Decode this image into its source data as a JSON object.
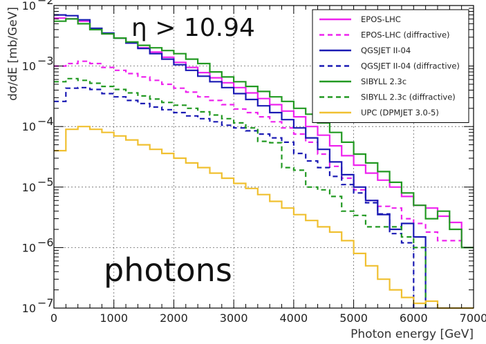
{
  "chart_data": {
    "type": "line",
    "xlabel": "Photon energy [GeV]",
    "ylabel": "dσ/dE [mb/GeV]",
    "xlim": [
      0,
      7000
    ],
    "ylim": [
      1e-07,
      0.01
    ],
    "yscale": "log",
    "grid": true,
    "legend_position": "top-right",
    "xticks": [
      0,
      1000,
      2000,
      3000,
      4000,
      5000,
      6000,
      7000
    ],
    "xtick_labels": [
      "0",
      "1000",
      "2000",
      "3000",
      "4000",
      "5000",
      "6000",
      "7000"
    ],
    "yticks": [
      1e-07,
      1e-06,
      1e-05,
      0.0001,
      0.001,
      0.01
    ],
    "ytick_bases": [
      "10",
      "10",
      "10",
      "10",
      "10",
      "10"
    ],
    "ytick_exps": [
      "−7",
      "−6",
      "−5",
      "−4",
      "−3",
      "−2"
    ],
    "annotations": [
      "η > 10.94",
      "photons"
    ],
    "bin_width": 200,
    "series": [
      {
        "name": "EPOS-LHC",
        "color": "#ee22ee",
        "dash": "solid",
        "values": [
          0.0062,
          0.006,
          0.0055,
          0.004,
          0.0034,
          0.0029,
          0.0024,
          0.002,
          0.0017,
          0.0014,
          0.00115,
          0.00095,
          0.00078,
          0.00064,
          0.00053,
          0.00044,
          0.00036,
          0.00029,
          0.00023,
          0.00018,
          0.000145,
          0.0001,
          7.2e-05,
          4.8e-05,
          3.3e-05,
          2.3e-05,
          1.7e-05,
          1.3e-05,
          1e-05,
          7e-06,
          5e-06,
          4.5e-06,
          3.3e-06,
          2.6e-06,
          1e-06
        ]
      },
      {
        "name": "EPOS-LHC (diffractive)",
        "color": "#ee22ee",
        "dash": "dashed",
        "values": [
          0.001,
          0.0011,
          0.0012,
          0.0011,
          0.00095,
          0.00085,
          0.00075,
          0.00066,
          0.00058,
          0.0005,
          0.00043,
          0.00037,
          0.00031,
          0.00027,
          0.00023,
          0.000195,
          0.00017,
          0.000145,
          0.00012,
          9.5e-05,
          7.5e-05,
          5.5e-05,
          3.5e-05,
          2.2e-05,
          1.4e-05,
          9e-06,
          6e-06,
          4.8e-06,
          4.5e-06,
          3e-06,
          2.5e-06,
          1.8e-06,
          1.3e-06,
          1.3e-06,
          1e-06
        ]
      },
      {
        "name": "QGSJET II-04",
        "color": "#1a1ab4",
        "dash": "solid",
        "values": [
          0.007,
          0.0068,
          0.0058,
          0.0042,
          0.0035,
          0.0029,
          0.0024,
          0.00195,
          0.0016,
          0.0013,
          0.00105,
          0.00085,
          0.00068,
          0.00055,
          0.00044,
          0.00035,
          0.00028,
          0.00022,
          0.00017,
          0.00013,
          9.5e-05,
          6.5e-05,
          4.2e-05,
          2.6e-05,
          1.6e-05,
          1e-05,
          6e-06,
          3.5e-06,
          2e-06,
          2.5e-06,
          1.5e-06,
          null,
          null,
          null,
          null
        ]
      },
      {
        "name": "QGSJET II-04 (diffractive)",
        "color": "#1a1ab4",
        "dash": "dashed",
        "values": [
          0.00026,
          0.00043,
          0.00044,
          0.00041,
          0.00035,
          0.00031,
          0.00027,
          0.00024,
          0.00021,
          0.00019,
          0.00017,
          0.00015,
          0.000135,
          0.00012,
          0.000105,
          9.5e-05,
          8.5e-05,
          7.5e-05,
          6.5e-05,
          5.5e-05,
          3.6e-05,
          2.7e-05,
          2.1e-05,
          1.5e-05,
          1.1e-05,
          8e-06,
          5.5e-06,
          3.6e-06,
          1.7e-06,
          1.2e-06,
          null,
          null,
          null,
          null,
          null
        ]
      },
      {
        "name": "SIBYLL 2.3c",
        "color": "#229922",
        "dash": "solid",
        "values": [
          0.0055,
          0.006,
          0.005,
          0.004,
          0.0034,
          0.0029,
          0.0025,
          0.0022,
          0.002,
          0.0018,
          0.0016,
          0.0013,
          0.0011,
          0.0008,
          0.00066,
          0.00055,
          0.00046,
          0.00038,
          0.00031,
          0.00026,
          0.0002,
          0.00016,
          0.000115,
          8e-05,
          5.5e-05,
          3.5e-05,
          2.5e-05,
          1.8e-05,
          1.2e-05,
          8e-06,
          5e-06,
          3e-06,
          4e-06,
          2e-06,
          1e-06
        ]
      },
      {
        "name": "SIBYLL 2.3c (diffractive)",
        "color": "#229922",
        "dash": "dashed",
        "values": [
          0.00055,
          0.00062,
          0.00058,
          0.00052,
          0.00046,
          0.00041,
          0.00036,
          0.00032,
          0.000285,
          0.00025,
          0.000225,
          0.0002,
          0.000175,
          0.000155,
          0.000135,
          0.000115,
          9.5e-05,
          5.7e-05,
          5.4e-05,
          2.1e-05,
          1.9e-05,
          1e-05,
          9e-06,
          7e-06,
          4e-06,
          3.4e-06,
          2.2e-06,
          2.2e-06,
          2.2e-06,
          1.5e-06,
          1e-06,
          null,
          null,
          null,
          null
        ]
      },
      {
        "name": "UPC (DPMJET 3.0-5)",
        "color": "#f0c030",
        "dash": "solid",
        "values": [
          4e-05,
          9e-05,
          0.0001,
          9e-05,
          8e-05,
          7e-05,
          6e-05,
          5e-05,
          4.2e-05,
          3.6e-05,
          3e-05,
          2.5e-05,
          2.1e-05,
          1.7e-05,
          1.4e-05,
          1.15e-05,
          9.5e-06,
          7.5e-06,
          5.8e-06,
          4.5e-06,
          3.5e-06,
          2.8e-06,
          2.2e-06,
          1.8e-06,
          1.3e-06,
          8e-07,
          5e-07,
          3e-07,
          2e-07,
          1.5e-07,
          1.2e-07,
          1.3e-07,
          1e-07,
          1e-07,
          1e-07
        ]
      }
    ]
  }
}
